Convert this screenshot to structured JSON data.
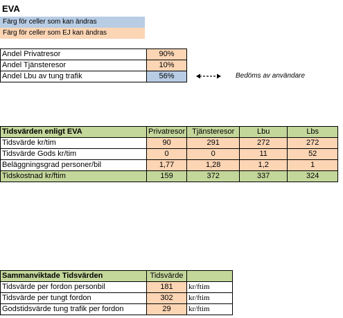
{
  "title": "EVA",
  "legend": {
    "editable": "Färg för celler som kan ändras",
    "not_editable": "Färg för celler som EJ kan ändras"
  },
  "shares": [
    {
      "label": "Andel Privatresor",
      "value": "90%"
    },
    {
      "label": "Andel Tjänsteresor",
      "value": "10%"
    },
    {
      "label": "Andel Lbu av tung trafik",
      "value": "56%"
    }
  ],
  "note": "Bedöms av användare",
  "colors": {
    "editable": "#b8cce4",
    "not_editable": "#fcd5b4",
    "header": "#c4d79b"
  },
  "tidsvarden": {
    "header": [
      "Tidsvärden enligt EVA",
      "Privatresor",
      "Tjänsteresor",
      "Lbu",
      "Lbs"
    ],
    "rows": [
      [
        "Tidsvärde kr/tim",
        "90",
        "291",
        "272",
        "272"
      ],
      [
        "Tidsvärde Gods kr/tim",
        "0",
        "0",
        "11",
        "52"
      ],
      [
        "Beläggningsgrad personer/bil",
        "1,77",
        "1,28",
        "1,2",
        "1"
      ]
    ],
    "footer": [
      "Tidskostnad kr/ftim",
      "159",
      "372",
      "337",
      "324"
    ]
  },
  "samman": {
    "header": [
      "Sammanviktade Tidsvärden",
      "Tidsvärde",
      ""
    ],
    "rows": [
      [
        "Tidsvärde per fordon personbil",
        "181",
        "kr/ftim"
      ],
      [
        "Tidsvärde per tungt fordon",
        "302",
        "kr/ftim"
      ],
      [
        "Godstidsvärde tung trafik per fordon",
        "29",
        "kr/ftim"
      ]
    ]
  }
}
